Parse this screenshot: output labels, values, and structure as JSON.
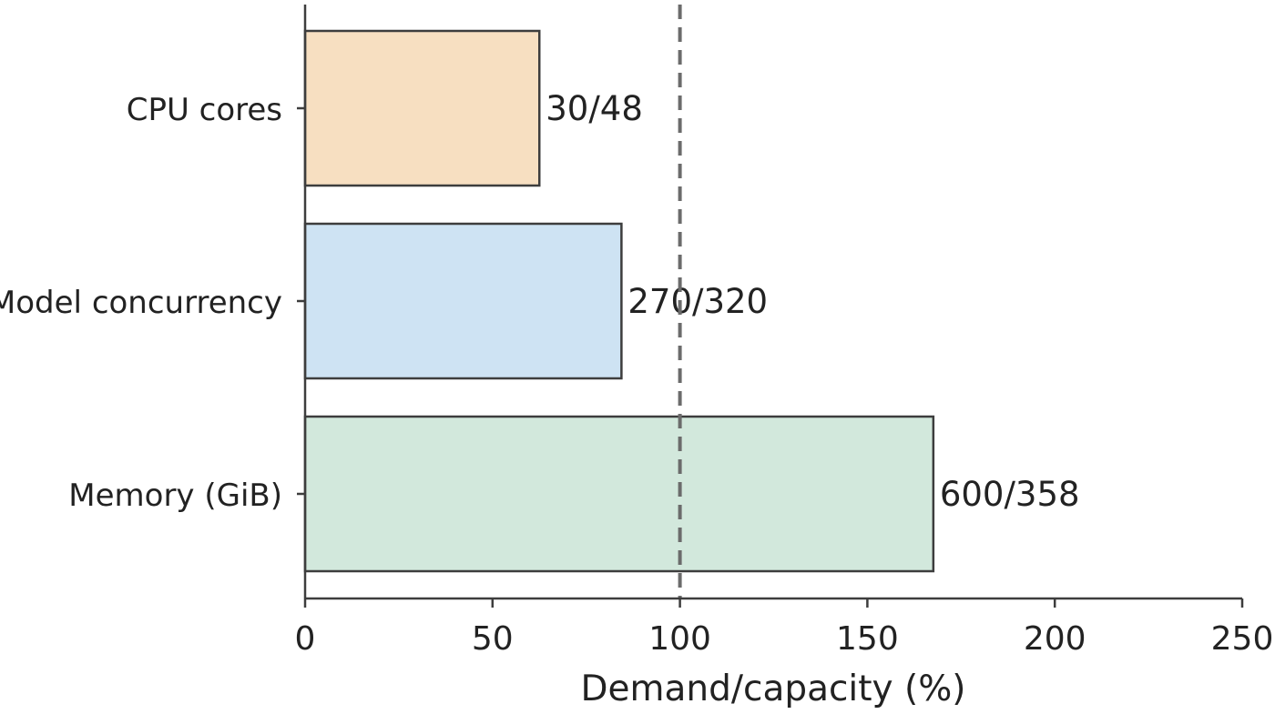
{
  "chart_data": {
    "type": "bar",
    "orientation": "horizontal",
    "title": "",
    "xlabel": "Demand/capacity (%)",
    "ylabel": "",
    "xlim": [
      0,
      250
    ],
    "xticks": [
      0,
      50,
      100,
      150,
      200,
      250
    ],
    "categories": [
      "CPU cores",
      "Model concurrency",
      "Memory (GiB)"
    ],
    "values": [
      62.5,
      84.4,
      167.6
    ],
    "bar_labels": [
      "30/48",
      "270/320",
      "600/358"
    ],
    "bar_colors": [
      "#f7dfc1",
      "#cee3f3",
      "#d2e8dc"
    ],
    "edge_color": "#3d3d3d",
    "reference_line": {
      "x": 100,
      "style": "dashed",
      "color": "#6b6b6b"
    },
    "grid": false,
    "legend": "none"
  }
}
